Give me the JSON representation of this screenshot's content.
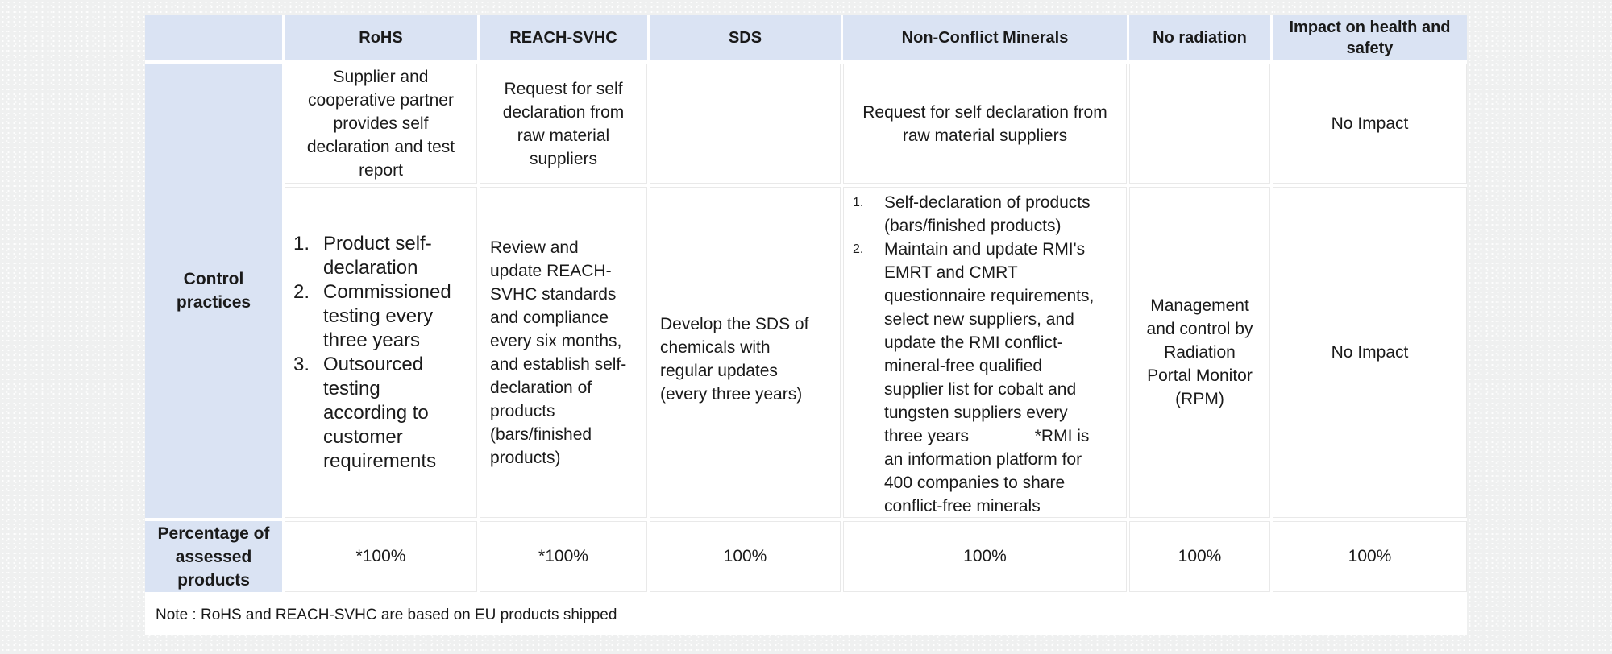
{
  "colors": {
    "header_bg": "#dae3f3",
    "page_bg": "#eff0f0",
    "grid_line": "#e9e9e9",
    "text": "#1a1a1a"
  },
  "table": {
    "headers": {
      "blank": "",
      "rohs": "RoHS",
      "reach": "REACH-SVHC",
      "sds": "SDS",
      "ncm": "Non-Conflict Minerals",
      "radiation": "No radiation",
      "impact": "Impact on health and\nsafety"
    },
    "row_labels": {
      "control": "Control\npractices",
      "percentage": "Percentage of\nassessed\nproducts"
    },
    "declaration_row": {
      "rohs": "Supplier and\ncooperative partner\nprovides self\ndeclaration and test\nreport",
      "reach": "Request for self\ndeclaration from\nraw material\nsuppliers",
      "sds": "",
      "ncm": "Request for self declaration from\nraw material suppliers",
      "radiation": "",
      "impact": "No Impact"
    },
    "control_row": {
      "rohs_items": [
        "Product self-\ndeclaration",
        "Commissioned\ntesting every\nthree years",
        "Outsourced\ntesting\naccording to\ncustomer\nrequirements"
      ],
      "reach": "Review and\nupdate REACH-\nSVHC standards\nand compliance\nevery six months,\nand establish self-\ndeclaration of\nproducts\n(bars/finished\nproducts)",
      "sds": "Develop the SDS of\nchemicals with\nregular updates\n(every three years)",
      "ncm_items": [
        "Self-declaration of products\n(bars/finished products)",
        "Maintain and update RMI's\nEMRT and CMRT\nquestionnaire requirements,\nselect new suppliers, and\nupdate the RMI conflict-\nmineral-free qualified\nsupplier list for cobalt and\ntungsten suppliers every\nthree years              *RMI is\nan information platform for\n400 companies to share\nconflict-free minerals"
      ],
      "radiation": "Management\nand control by\nRadiation\nPortal Monitor\n(RPM)",
      "impact": "No Impact"
    },
    "percentage_row": {
      "rohs": "*100%",
      "reach": "*100%",
      "sds": "100%",
      "ncm": "100%",
      "radiation": "100%",
      "impact": "100%"
    },
    "note": "Note : RoHS and REACH-SVHC are based on EU products shipped"
  }
}
